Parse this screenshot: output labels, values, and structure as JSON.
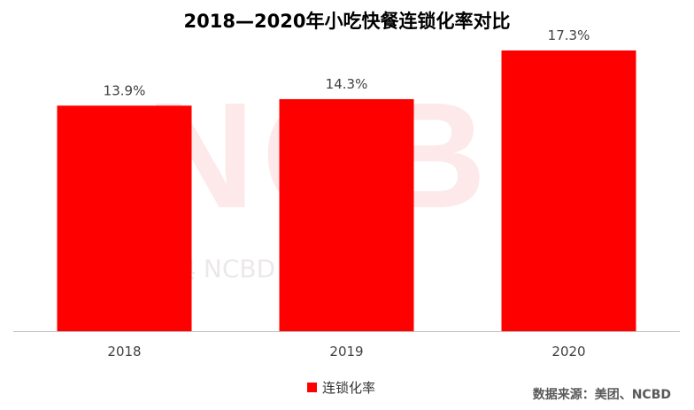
{
  "colors": {
    "bar": "#ff0000",
    "axis": "#bfbfbf",
    "label_text": "#404040",
    "tick_text": "#404040"
  },
  "watermark": {
    "logo_text": "NCBD",
    "line_text": "宝典  NCBD  Big Data"
  },
  "footer": {
    "source": "数据来源：美团、NCBD"
  },
  "chart_data": {
    "type": "bar",
    "title": "2018—2020年小吃快餐连锁化率对比",
    "xlabel": "",
    "ylabel": "",
    "categories": [
      "2018",
      "2019",
      "2020"
    ],
    "series": [
      {
        "name": "连锁化率",
        "values": [
          13.9,
          14.3,
          17.3
        ],
        "labels": [
          "13.9%",
          "14.3%",
          "17.3%"
        ]
      }
    ],
    "ylim": [
      0,
      18.5
    ],
    "grid": false,
    "legend": "bottom"
  }
}
